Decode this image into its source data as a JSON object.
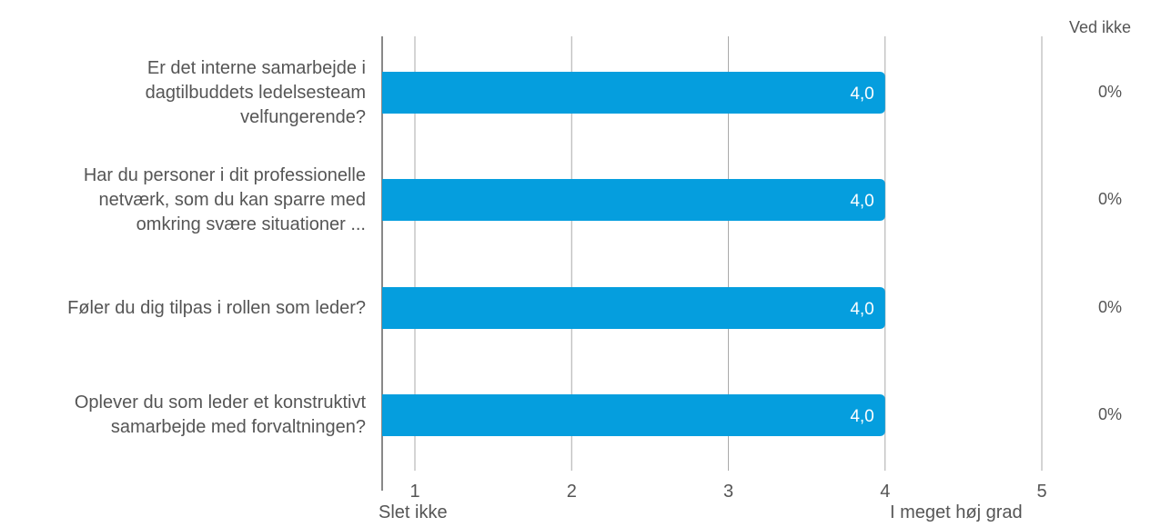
{
  "chart_data": {
    "type": "bar",
    "orientation": "horizontal",
    "categories": [
      "Er det interne samarbejde i dagtilbuddets ledelsesteam velfungerende?",
      "Har du personer i dit professionelle netværk, som du kan sparre med omkring svære situationer ...",
      "Føler du dig tilpas i rollen som leder?",
      "Oplever du som leder et konstruktivt samarbejde med forvaltningen?"
    ],
    "category_lines": [
      [
        "Er det interne samarbejde i",
        "dagtilbuddets ledelsesteam",
        "velfungerende?"
      ],
      [
        "Har du personer i dit professionelle",
        "netværk, som du kan sparre med",
        "omkring svære situationer ..."
      ],
      [
        "Føler du dig tilpas i rollen som leder?"
      ],
      [
        "Oplever du som leder et konstruktivt",
        "samarbejde med forvaltningen?"
      ]
    ],
    "values": [
      4.0,
      4.0,
      4.0,
      4.0
    ],
    "value_labels": [
      "4,0",
      "4,0",
      "4,0",
      "4,0"
    ],
    "xlim": [
      0.8,
      5
    ],
    "xticks": [
      "1",
      "2",
      "3",
      "4",
      "5"
    ],
    "x_endpoint_labels": {
      "min": "Slet ikke",
      "max": "I meget høj grad"
    },
    "side_column": {
      "header": "Ved ikke",
      "values": [
        "0%",
        "0%",
        "0%",
        "0%"
      ]
    },
    "grid": true,
    "colors": {
      "bar": "#059EDE",
      "grid": "#AAAAAA",
      "axis": "#888888",
      "bar_label": "#FFFFFF"
    }
  }
}
